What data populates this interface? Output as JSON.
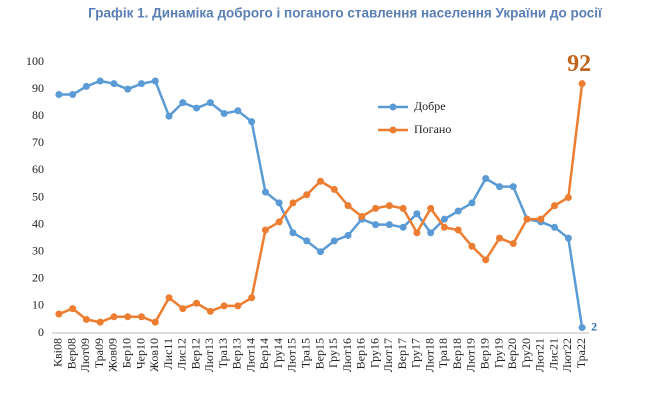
{
  "chart_data": {
    "type": "line",
    "title": "Графік 1. Динаміка доброго і поганого ставлення населення України до росії",
    "categories": [
      "Кві08",
      "Вер08",
      "Лют09",
      "Тра09",
      "Жов09",
      "Бер10",
      "Чер10",
      "Жов10",
      "Лис11",
      "Лис12",
      "Вер12",
      "Лют13",
      "Тра13",
      "Вер13",
      "Лют14",
      "Вер14",
      "Гру14",
      "Лют15",
      "Тра15",
      "Вер15",
      "Гру15",
      "Лют16",
      "Вер16",
      "Гру16",
      "Лют17",
      "Вер17",
      "Гру17",
      "Лют18",
      "Тра18",
      "Вер18",
      "Лют19",
      "Вер19",
      "Гру19",
      "Вер20",
      "Гру20",
      "Лют21",
      "Лис21",
      "Лют22",
      "Тра22"
    ],
    "series": [
      {
        "name": "Добре",
        "color": "#5b9bd5",
        "values": [
          88,
          88,
          91,
          93,
          92,
          90,
          92,
          93,
          80,
          85,
          83,
          85,
          81,
          82,
          78,
          52,
          48,
          37,
          34,
          30,
          34,
          36,
          42,
          40,
          40,
          39,
          44,
          37,
          42,
          45,
          48,
          57,
          54,
          54,
          42,
          41,
          39,
          35,
          2
        ],
        "value_labels": [
          null,
          null,
          null,
          null,
          null,
          null,
          null,
          null,
          null,
          null,
          null,
          null,
          null,
          null,
          null,
          null,
          null,
          null,
          null,
          null,
          null,
          null,
          null,
          null,
          null,
          null,
          null,
          null,
          null,
          null,
          null,
          null,
          null,
          null,
          null,
          null,
          null,
          null,
          "2"
        ]
      },
      {
        "name": "Погано",
        "color": "#ed7d31",
        "values": [
          7,
          9,
          5,
          4,
          6,
          6,
          6,
          4,
          13,
          9,
          11,
          8,
          10,
          10,
          13,
          38,
          41,
          48,
          51,
          56,
          53,
          47,
          43,
          46,
          47,
          46,
          37,
          46,
          39,
          38,
          32,
          27,
          35,
          33,
          42,
          42,
          47,
          50,
          92
        ],
        "value_labels": [
          null,
          null,
          null,
          null,
          null,
          null,
          null,
          null,
          null,
          null,
          null,
          null,
          null,
          null,
          null,
          null,
          null,
          null,
          null,
          null,
          null,
          null,
          null,
          null,
          null,
          null,
          null,
          null,
          null,
          null,
          null,
          null,
          null,
          null,
          null,
          null,
          null,
          null,
          "92"
        ]
      }
    ],
    "ylim": [
      0,
      100
    ],
    "yticks": [
      0,
      10,
      20,
      30,
      40,
      50,
      60,
      70,
      80,
      90,
      100
    ],
    "grid": false,
    "legend": "inside"
  }
}
